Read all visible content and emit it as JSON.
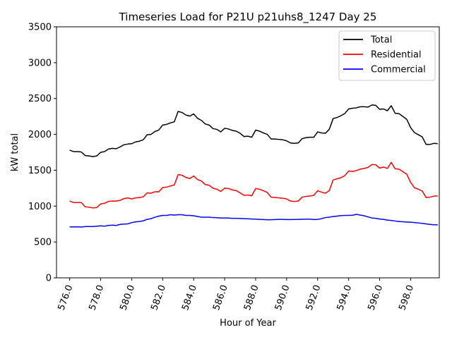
{
  "chart_data": {
    "type": "line",
    "title": "Timeseries Load for P21U p21uhs8_1247  Day 25",
    "xlabel": "Hour of Year",
    "ylabel": "kW total",
    "xlim": [
      575.15,
      599.85
    ],
    "ylim": [
      0,
      3500
    ],
    "xticks": [
      576,
      578,
      580,
      582,
      584,
      586,
      588,
      590,
      592,
      594,
      596,
      598
    ],
    "xtick_labels": [
      "576.0",
      "578.0",
      "580.0",
      "582.0",
      "584.0",
      "586.0",
      "588.0",
      "590.0",
      "592.0",
      "594.0",
      "596.0",
      "598.0"
    ],
    "yticks": [
      0,
      500,
      1000,
      1500,
      2000,
      2500,
      3000,
      3500
    ],
    "ytick_labels": [
      "0",
      "500",
      "1000",
      "1500",
      "2000",
      "2500",
      "3000",
      "3500"
    ],
    "xtick_rotation": 70,
    "grid": false,
    "legend_position": "top-right",
    "x_start": 576,
    "x_step": 0.25,
    "series": [
      {
        "name": "Total",
        "color": "#000000",
        "values": [
          1780,
          1760,
          1760,
          1755,
          1705,
          1700,
          1690,
          1700,
          1750,
          1760,
          1795,
          1805,
          1800,
          1825,
          1855,
          1865,
          1870,
          1895,
          1905,
          1925,
          1995,
          2000,
          2040,
          2060,
          2130,
          2140,
          2160,
          2175,
          2320,
          2305,
          2270,
          2255,
          2285,
          2225,
          2195,
          2145,
          2130,
          2080,
          2070,
          2035,
          2085,
          2075,
          2055,
          2045,
          2015,
          1970,
          1975,
          1960,
          2060,
          2045,
          2020,
          2000,
          1935,
          1935,
          1930,
          1925,
          1910,
          1880,
          1875,
          1880,
          1940,
          1955,
          1960,
          1960,
          2035,
          2020,
          2015,
          2070,
          2220,
          2235,
          2260,
          2290,
          2355,
          2365,
          2370,
          2385,
          2385,
          2380,
          2410,
          2405,
          2350,
          2355,
          2330,
          2400,
          2295,
          2290,
          2250,
          2210,
          2095,
          2025,
          1995,
          1965,
          1860,
          1860,
          1875,
          1870
        ]
      },
      {
        "name": "Residential",
        "color": "#ff0000",
        "values": [
          1070,
          1050,
          1050,
          1050,
          990,
          985,
          975,
          980,
          1030,
          1040,
          1065,
          1070,
          1070,
          1080,
          1105,
          1115,
          1100,
          1115,
          1120,
          1130,
          1185,
          1180,
          1200,
          1200,
          1260,
          1265,
          1280,
          1295,
          1440,
          1430,
          1400,
          1385,
          1420,
          1370,
          1350,
          1300,
          1290,
          1250,
          1235,
          1205,
          1250,
          1245,
          1225,
          1215,
          1185,
          1150,
          1155,
          1145,
          1245,
          1235,
          1215,
          1190,
          1125,
          1120,
          1115,
          1110,
          1100,
          1070,
          1065,
          1070,
          1125,
          1135,
          1140,
          1150,
          1215,
          1195,
          1180,
          1215,
          1365,
          1380,
          1395,
          1425,
          1490,
          1485,
          1495,
          1515,
          1525,
          1540,
          1580,
          1575,
          1530,
          1545,
          1525,
          1610,
          1520,
          1515,
          1480,
          1445,
          1330,
          1255,
          1235,
          1210,
          1120,
          1125,
          1140,
          1140
        ]
      },
      {
        "name": "Commercial",
        "color": "#0000ff",
        "values": [
          710,
          710,
          712,
          708,
          715,
          715,
          715,
          720,
          725,
          720,
          730,
          735,
          730,
          745,
          750,
          752,
          770,
          780,
          785,
          795,
          815,
          825,
          845,
          860,
          870,
          870,
          880,
          875,
          880,
          880,
          870,
          870,
          865,
          855,
          845,
          845,
          845,
          840,
          838,
          835,
          835,
          833,
          830,
          830,
          828,
          825,
          823,
          820,
          818,
          815,
          812,
          810,
          810,
          812,
          815,
          815,
          812,
          812,
          813,
          815,
          816,
          818,
          818,
          812,
          815,
          825,
          840,
          845,
          855,
          860,
          868,
          870,
          870,
          872,
          885,
          875,
          865,
          850,
          835,
          830,
          820,
          815,
          805,
          800,
          792,
          785,
          782,
          778,
          775,
          770,
          765,
          760,
          752,
          745,
          740,
          738
        ]
      }
    ]
  }
}
